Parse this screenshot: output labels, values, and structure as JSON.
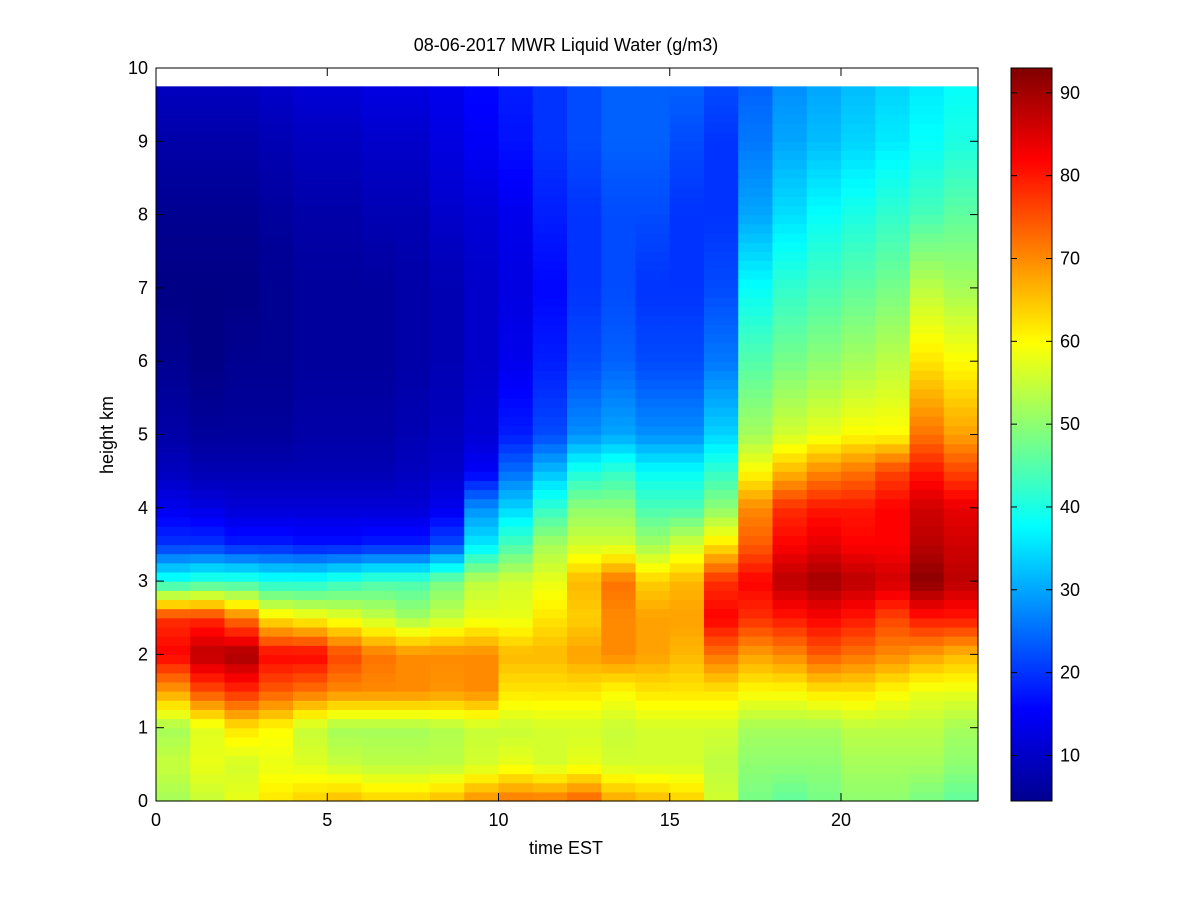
{
  "chart_data": {
    "type": "heatmap",
    "title": "08-06-2017 MWR Liquid Water (g/m3)",
    "xlabel": "time EST",
    "ylabel": "height km",
    "xlim": [
      0,
      24
    ],
    "ylim": [
      0,
      10
    ],
    "x_ticks": [
      "0",
      "5",
      "10",
      "15",
      "20"
    ],
    "y_ticks": [
      "0",
      "1",
      "2",
      "3",
      "4",
      "5",
      "6",
      "7",
      "8",
      "9",
      "10"
    ],
    "colorbar": {
      "colormap": "jet",
      "range": [
        4.5,
        93
      ],
      "ticks": [
        "10",
        "20",
        "30",
        "40",
        "50",
        "60",
        "70",
        "80",
        "90"
      ]
    },
    "x_centers_hours": [
      0.5,
      1.5,
      2.5,
      3.5,
      4.5,
      5.5,
      6.5,
      7.5,
      8.5,
      9.5,
      10.5,
      11.5,
      12.5,
      13.5,
      14.5,
      15.5,
      16.5,
      17.5,
      18.5,
      19.5,
      20.5,
      21.5,
      22.5,
      23.5
    ],
    "y_heights_km": [
      0,
      0.5,
      1,
      1.5,
      2,
      2.5,
      3,
      3.5,
      4,
      4.5,
      5,
      6,
      7,
      8,
      9,
      9.75
    ],
    "values_by_hour": [
      [
        52,
        55,
        52,
        68,
        82,
        78,
        40,
        20,
        14,
        10,
        8,
        6,
        5,
        6,
        8,
        10
      ],
      [
        55,
        58,
        57,
        75,
        88,
        78,
        42,
        20,
        13,
        9,
        7,
        5,
        5,
        6,
        8,
        10
      ],
      [
        58,
        56,
        62,
        78,
        90,
        72,
        42,
        18,
        12,
        9,
        7,
        6,
        5,
        6,
        8,
        10
      ],
      [
        62,
        58,
        60,
        74,
        82,
        62,
        40,
        18,
        12,
        9,
        7,
        6,
        6,
        7,
        9,
        11
      ],
      [
        64,
        57,
        55,
        72,
        82,
        60,
        40,
        17,
        12,
        9,
        8,
        7,
        7,
        8,
        10,
        12
      ],
      [
        66,
        55,
        52,
        70,
        76,
        58,
        42,
        17,
        12,
        9,
        8,
        7,
        7,
        8,
        10,
        12
      ],
      [
        64,
        54,
        52,
        70,
        72,
        55,
        44,
        18,
        12,
        9,
        8,
        7,
        7,
        9,
        11,
        13
      ],
      [
        64,
        54,
        52,
        70,
        70,
        52,
        44,
        18,
        12,
        10,
        9,
        8,
        8,
        9,
        11,
        13
      ],
      [
        66,
        54,
        53,
        69,
        70,
        55,
        48,
        22,
        14,
        11,
        10,
        9,
        9,
        11,
        13,
        14
      ],
      [
        70,
        56,
        55,
        70,
        70,
        58,
        54,
        36,
        28,
        15,
        12,
        11,
        11,
        12,
        15,
        16
      ],
      [
        72,
        58,
        55,
        62,
        66,
        58,
        56,
        44,
        34,
        25,
        18,
        14,
        13,
        14,
        17,
        18
      ],
      [
        72,
        56,
        56,
        62,
        66,
        62,
        58,
        52,
        42,
        32,
        22,
        18,
        16,
        18,
        20,
        20
      ],
      [
        74,
        58,
        56,
        62,
        68,
        64,
        66,
        56,
        50,
        40,
        28,
        22,
        20,
        20,
        22,
        22
      ],
      [
        68,
        56,
        55,
        60,
        70,
        70,
        72,
        56,
        50,
        42,
        30,
        24,
        22,
        22,
        24,
        24
      ],
      [
        66,
        56,
        56,
        62,
        68,
        68,
        64,
        52,
        44,
        38,
        28,
        22,
        20,
        22,
        24,
        24
      ],
      [
        64,
        56,
        56,
        62,
        66,
        68,
        66,
        56,
        44,
        38,
        28,
        22,
        20,
        20,
        22,
        24
      ],
      [
        56,
        54,
        56,
        62,
        72,
        82,
        78,
        62,
        50,
        42,
        34,
        26,
        22,
        20,
        20,
        22
      ],
      [
        48,
        50,
        52,
        60,
        68,
        78,
        82,
        74,
        70,
        60,
        52,
        45,
        38,
        30,
        26,
        24
      ],
      [
        46,
        50,
        52,
        60,
        70,
        80,
        88,
        82,
        78,
        66,
        56,
        48,
        42,
        35,
        30,
        28
      ],
      [
        48,
        50,
        52,
        62,
        74,
        82,
        90,
        84,
        80,
        70,
        58,
        50,
        44,
        38,
        32,
        30
      ],
      [
        50,
        52,
        54,
        62,
        72,
        80,
        88,
        82,
        80,
        72,
        60,
        52,
        46,
        40,
        34,
        32
      ],
      [
        50,
        52,
        54,
        60,
        70,
        76,
        86,
        82,
        82,
        76,
        60,
        54,
        48,
        42,
        36,
        34
      ],
      [
        48,
        52,
        54,
        58,
        68,
        80,
        92,
        88,
        86,
        80,
        72,
        62,
        54,
        44,
        38,
        36
      ],
      [
        46,
        50,
        52,
        58,
        66,
        80,
        88,
        86,
        84,
        76,
        68,
        60,
        52,
        46,
        40,
        38
      ]
    ]
  }
}
